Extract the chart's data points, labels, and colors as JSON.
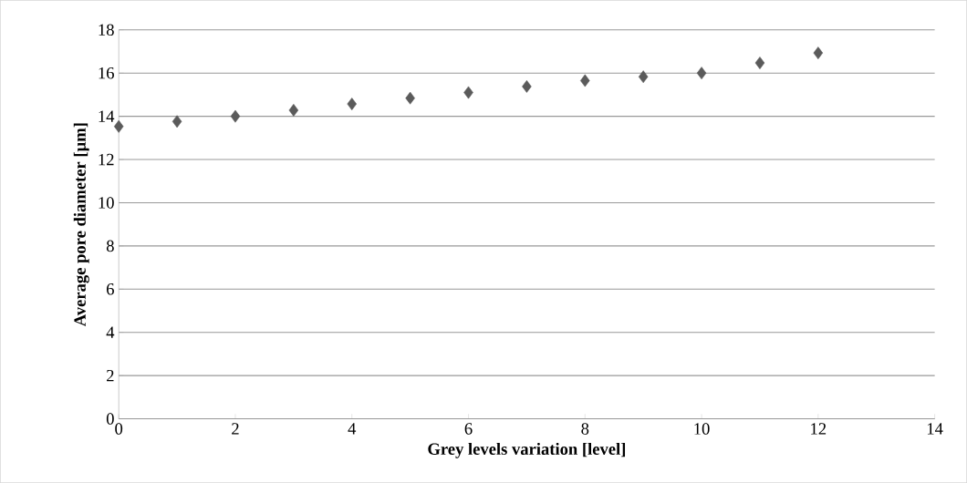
{
  "chart_data": {
    "type": "scatter",
    "xlabel": "Grey levels variation [level]",
    "ylabel": "Average pore diameter [µm]",
    "x": [
      0,
      1,
      2,
      3,
      4,
      5,
      6,
      7,
      8,
      9,
      10,
      11,
      12
    ],
    "values": [
      13.53,
      13.76,
      14.0,
      14.28,
      14.57,
      14.84,
      15.1,
      15.38,
      15.65,
      15.83,
      16.0,
      16.47,
      16.93
    ],
    "color": "#5b5b5b",
    "marker": "diamond",
    "xlim": [
      0,
      14
    ],
    "xticks": [
      0,
      2,
      4,
      6,
      8,
      10,
      12,
      14
    ],
    "ylim": [
      0,
      18
    ],
    "yticks": [
      0,
      2,
      4,
      6,
      8,
      10,
      12,
      14,
      16,
      18
    ],
    "grid": "y"
  }
}
